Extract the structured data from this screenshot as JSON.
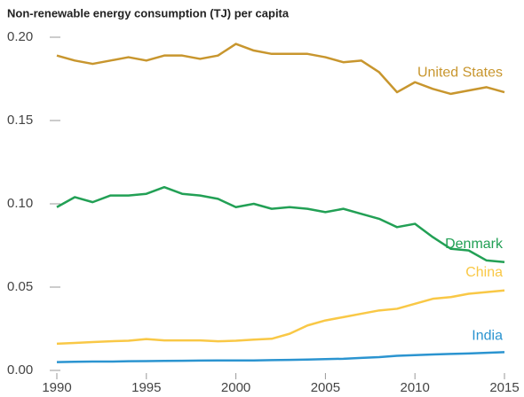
{
  "chart_data": {
    "type": "line",
    "title": "Non-renewable energy consumption (TJ) per capita",
    "x": [
      1990,
      1991,
      1992,
      1993,
      1994,
      1995,
      1996,
      1997,
      1998,
      1999,
      2000,
      2001,
      2002,
      2003,
      2004,
      2005,
      2006,
      2007,
      2008,
      2009,
      2010,
      2011,
      2012,
      2013,
      2014,
      2015
    ],
    "xlim": [
      1990,
      2015
    ],
    "xticks": [
      1990,
      1995,
      2000,
      2005,
      2010,
      2015
    ],
    "ylim": [
      0,
      0.2
    ],
    "yticks": [
      {
        "value": 0,
        "label": "0.00"
      },
      0.05,
      {
        "value": 0.1,
        "label": "0.10"
      },
      0.15,
      {
        "value": 0.2,
        "label": "0.20"
      }
    ],
    "grid": false,
    "series": [
      {
        "name": "United States",
        "color": "#c8962e",
        "values": [
          0.189,
          0.186,
          0.184,
          0.186,
          0.188,
          0.186,
          0.189,
          0.189,
          0.187,
          0.189,
          0.196,
          0.192,
          0.19,
          0.19,
          0.19,
          0.188,
          0.185,
          0.186,
          0.179,
          0.167,
          0.173,
          0.169,
          0.166,
          0.168,
          0.17,
          0.167
        ]
      },
      {
        "name": "Denmark",
        "color": "#22a055",
        "values": [
          0.098,
          0.104,
          0.101,
          0.105,
          0.105,
          0.106,
          0.11,
          0.106,
          0.105,
          0.103,
          0.098,
          0.1,
          0.097,
          0.098,
          0.097,
          0.095,
          0.097,
          0.094,
          0.091,
          0.086,
          0.088,
          0.08,
          0.073,
          0.072,
          0.066,
          0.065
        ]
      },
      {
        "name": "China",
        "color": "#f9c846",
        "values": [
          0.016,
          0.0165,
          0.017,
          0.0175,
          0.0178,
          0.0188,
          0.018,
          0.018,
          0.018,
          0.0175,
          0.0178,
          0.0185,
          0.019,
          0.022,
          0.027,
          0.03,
          0.032,
          0.034,
          0.036,
          0.037,
          0.04,
          0.043,
          0.044,
          0.046,
          0.047,
          0.048
        ]
      },
      {
        "name": "India",
        "color": "#2b94d0",
        "values": [
          0.005,
          0.0052,
          0.0053,
          0.0053,
          0.0055,
          0.0056,
          0.0057,
          0.0058,
          0.0059,
          0.006,
          0.006,
          0.006,
          0.0062,
          0.0063,
          0.0065,
          0.0068,
          0.007,
          0.0075,
          0.008,
          0.0088,
          0.0092,
          0.0096,
          0.0099,
          0.0102,
          0.0106,
          0.011
        ]
      }
    ]
  }
}
